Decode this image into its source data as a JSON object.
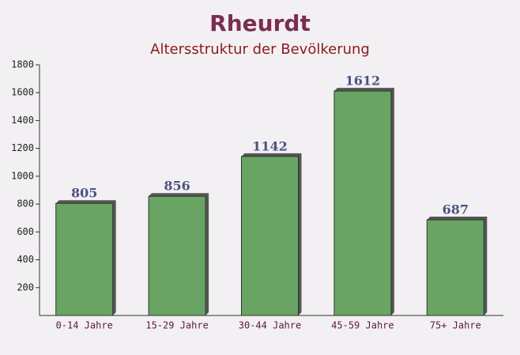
{
  "chart_data": {
    "type": "bar",
    "title": "Rheurdt",
    "subtitle": "Altersstruktur der Bevölkerung",
    "categories": [
      "0-14 Jahre",
      "15-29 Jahre",
      "30-44 Jahre",
      "45-59 Jahre",
      "75+ Jahre"
    ],
    "values": [
      805,
      856,
      1142,
      1612,
      687
    ],
    "color": "#6aa464",
    "ylim": [
      0,
      1800
    ],
    "yticks": [
      200,
      400,
      600,
      800,
      1000,
      1200,
      1400,
      1600,
      1800
    ]
  }
}
